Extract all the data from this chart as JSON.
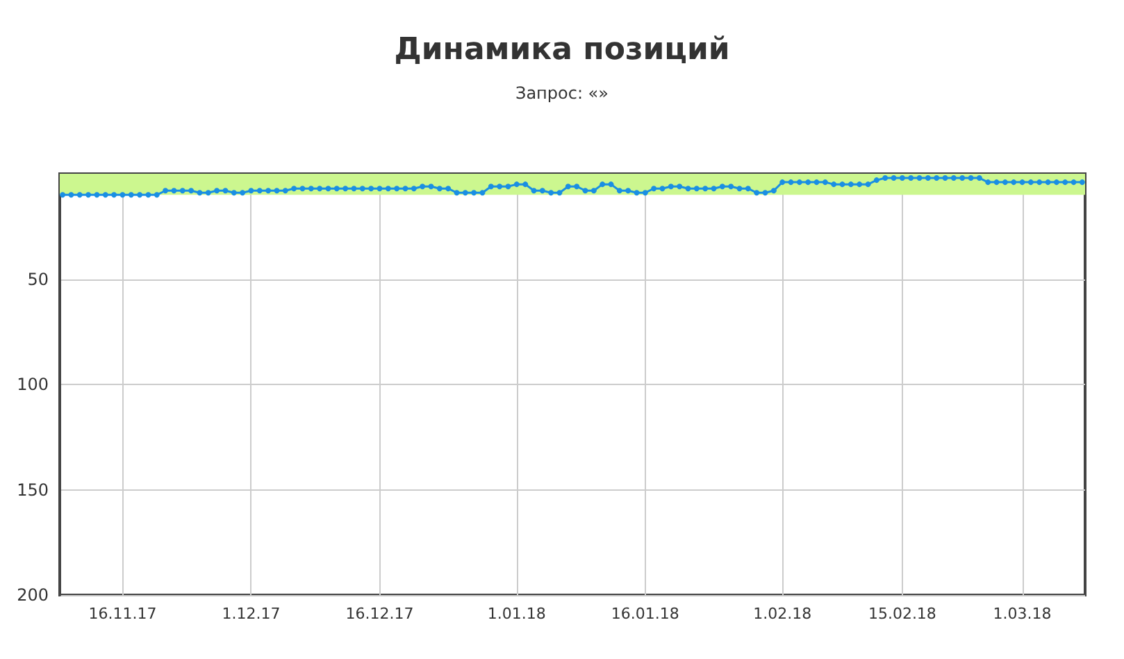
{
  "chart_data": {
    "type": "line",
    "title": "Динамика позиций",
    "subtitle": "Запрос: «»",
    "x": [
      "2017-11-09",
      "2017-11-10",
      "2017-11-11",
      "2017-11-12",
      "2017-11-13",
      "2017-11-14",
      "2017-11-15",
      "2017-11-16",
      "2017-11-17",
      "2017-11-18",
      "2017-11-19",
      "2017-11-20",
      "2017-11-21",
      "2017-11-22",
      "2017-11-23",
      "2017-11-24",
      "2017-11-25",
      "2017-11-26",
      "2017-11-27",
      "2017-11-28",
      "2017-11-29",
      "2017-11-30",
      "2017-12-01",
      "2017-12-02",
      "2017-12-03",
      "2017-12-04",
      "2017-12-05",
      "2017-12-06",
      "2017-12-07",
      "2017-12-08",
      "2017-12-09",
      "2017-12-10",
      "2017-12-11",
      "2017-12-12",
      "2017-12-13",
      "2017-12-14",
      "2017-12-15",
      "2017-12-16",
      "2017-12-17",
      "2017-12-18",
      "2017-12-19",
      "2017-12-20",
      "2017-12-21",
      "2017-12-22",
      "2017-12-23",
      "2017-12-24",
      "2017-12-25",
      "2017-12-26",
      "2017-12-27",
      "2017-12-28",
      "2017-12-29",
      "2017-12-30",
      "2017-12-31",
      "2018-01-01",
      "2018-01-02",
      "2018-01-03",
      "2018-01-04",
      "2018-01-05",
      "2018-01-06",
      "2018-01-07",
      "2018-01-08",
      "2018-01-09",
      "2018-01-10",
      "2018-01-11",
      "2018-01-12",
      "2018-01-13",
      "2018-01-14",
      "2018-01-15",
      "2018-01-16",
      "2018-01-17",
      "2018-01-18",
      "2018-01-19",
      "2018-01-20",
      "2018-01-21",
      "2018-01-22",
      "2018-01-23",
      "2018-01-24",
      "2018-01-25",
      "2018-01-26",
      "2018-01-27",
      "2018-01-28",
      "2018-01-29",
      "2018-01-30",
      "2018-01-31",
      "2018-02-01",
      "2018-02-02",
      "2018-02-03",
      "2018-02-04",
      "2018-02-05",
      "2018-02-06",
      "2018-02-07",
      "2018-02-08",
      "2018-02-09",
      "2018-02-10",
      "2018-02-11",
      "2018-02-12",
      "2018-02-13",
      "2018-02-14",
      "2018-02-15",
      "2018-02-16",
      "2018-02-17",
      "2018-02-18",
      "2018-02-19",
      "2018-02-20",
      "2018-02-21",
      "2018-02-22",
      "2018-02-23",
      "2018-02-24",
      "2018-02-25",
      "2018-02-26",
      "2018-02-27",
      "2018-02-28",
      "2018-03-01",
      "2018-03-02",
      "2018-03-03",
      "2018-03-04",
      "2018-03-05",
      "2018-03-06",
      "2018-03-07",
      "2018-03-08"
    ],
    "series": [
      {
        "color": "#1a8fe3",
        "values": [
          10,
          10,
          10,
          10,
          10,
          10,
          10,
          10,
          10,
          10,
          10,
          10,
          8,
          8,
          8,
          8,
          9,
          9,
          8,
          8,
          9,
          9,
          8,
          8,
          8,
          8,
          8,
          7,
          7,
          7,
          7,
          7,
          7,
          7,
          7,
          7,
          7,
          7,
          7,
          7,
          7,
          7,
          6,
          6,
          7,
          7,
          9,
          9,
          9,
          9,
          6,
          6,
          6,
          5,
          5,
          8,
          8,
          9,
          9,
          6,
          6,
          8,
          8,
          5,
          5,
          8,
          8,
          9,
          9,
          7,
          7,
          6,
          6,
          7,
          7,
          7,
          7,
          6,
          6,
          7,
          7,
          9,
          9,
          8,
          4,
          4,
          4,
          4,
          4,
          4,
          5,
          5,
          5,
          5,
          5,
          3,
          2,
          2,
          2,
          2,
          2,
          2,
          2,
          2,
          2,
          2,
          2,
          2,
          4,
          4,
          4,
          4,
          4,
          4,
          4,
          4,
          4,
          4,
          4,
          4
        ]
      }
    ],
    "xlim": [
      "2017-11-08T16:00",
      "2018-03-08T08:00"
    ],
    "xticks": [
      {
        "value": "2017-11-16",
        "label": "16.11.17"
      },
      {
        "value": "2017-12-01",
        "label": "1.12.17"
      },
      {
        "value": "2017-12-16",
        "label": "16.12.17"
      },
      {
        "value": "2018-01-01",
        "label": "1.01.18"
      },
      {
        "value": "2018-01-16",
        "label": "16.01.18"
      },
      {
        "value": "2018-02-01",
        "label": "1.02.18"
      },
      {
        "value": "2018-02-15",
        "label": "15.02.18"
      },
      {
        "value": "2018-03-01",
        "label": "1.03.18"
      }
    ],
    "ylim": [
      200,
      0
    ],
    "yticks": [
      50,
      100,
      150,
      200
    ],
    "bands": [
      {
        "axis": "y",
        "from": 0,
        "to": 10,
        "color": "#ccf78f"
      }
    ],
    "grid": true,
    "marker": "circle",
    "line_style": "solid"
  }
}
